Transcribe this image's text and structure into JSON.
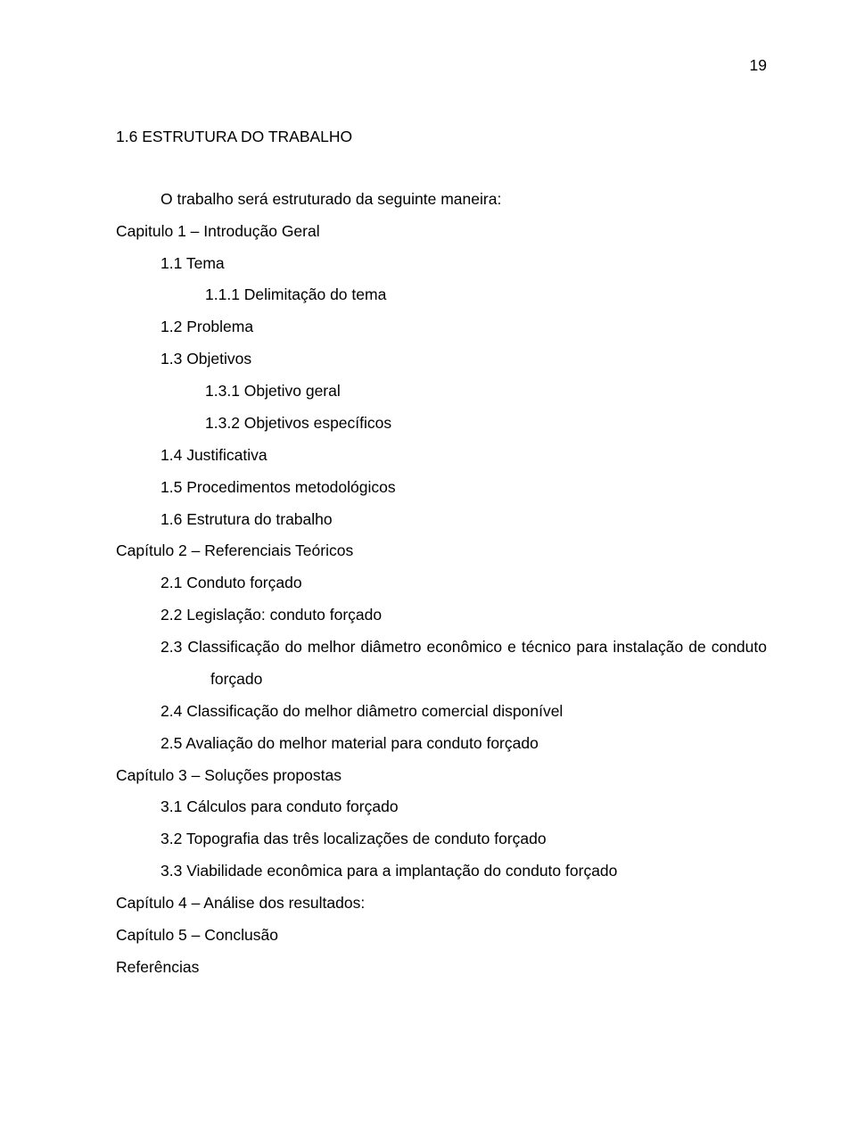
{
  "page_number": "19",
  "heading": "1.6 ESTRUTURA DO TRABALHO",
  "intro": "O trabalho será estruturado da seguinte maneira:",
  "lines": {
    "cap1": "Capitulo 1 – Introdução Geral",
    "l11": "1.1 Tema",
    "l111": "1.1.1   Delimitação do tema",
    "l12": "1.2 Problema",
    "l13": "1.3 Objetivos",
    "l131": "1.3.1   Objetivo geral",
    "l132": "1.3.2   Objetivos específicos",
    "l14": "1.4 Justificativa",
    "l15": "1.5 Procedimentos metodológicos",
    "l16": "1.6 Estrutura do trabalho",
    "cap2": "Capítulo 2 – Referenciais Teóricos",
    "l21": "2.1 Conduto forçado",
    "l22": "2.2 Legislação: conduto forçado",
    "l23": "2.3 Classificação do melhor diâmetro econômico e técnico para instalação de conduto forçado",
    "l24": "2.4 Classificação do melhor diâmetro comercial disponível",
    "l25": "2.5 Avaliação do melhor material para conduto forçado",
    "cap3": "Capítulo 3 – Soluções propostas",
    "l31": "3.1 Cálculos para conduto forçado",
    "l32": "3.2 Topografia das três localizações de conduto forçado",
    "l33": "3.3 Viabilidade econômica para a implantação do conduto forçado",
    "cap4": "Capítulo 4 – Análise dos resultados:",
    "cap5": "Capítulo 5 – Conclusão",
    "refs": "Referências"
  }
}
